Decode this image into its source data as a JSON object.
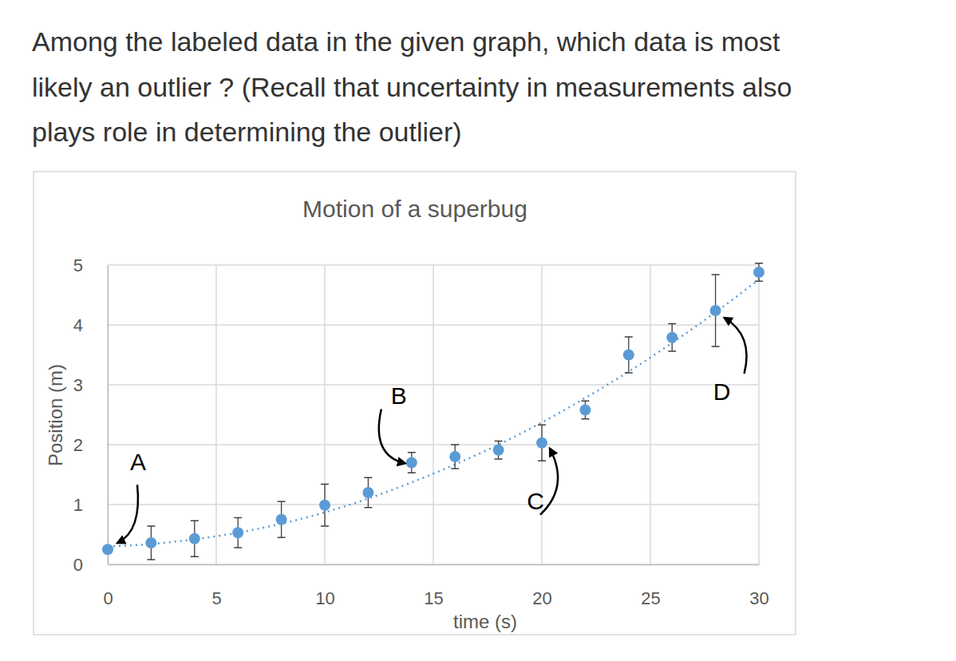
{
  "question_lines": [
    "Among the labeled data in the given graph, which data is most",
    "likely an outlier ? (Recall that uncertainty in measurements also",
    "plays role in determining the outlier)"
  ],
  "chart_data": {
    "type": "scatter",
    "title": "Motion of a superbug",
    "x_label": "time (s)",
    "y_label": "Position (m)",
    "x": [
      0,
      2,
      4,
      6,
      8,
      10,
      12,
      14,
      16,
      18,
      20,
      22,
      24,
      26,
      28,
      30
    ],
    "series": [
      {
        "type": "scatter",
        "color": "#5b9bd5",
        "marker": "circle",
        "values": [
          0.25,
          0.36,
          0.43,
          0.53,
          0.75,
          0.99,
          1.2,
          1.7,
          1.8,
          1.91,
          2.03,
          2.58,
          3.5,
          3.79,
          4.24,
          4.88
        ],
        "errors": [
          0.05,
          0.28,
          0.3,
          0.25,
          0.3,
          0.35,
          0.25,
          0.17,
          0.2,
          0.15,
          0.3,
          0.15,
          0.3,
          0.23,
          0.6,
          0.15
        ]
      },
      {
        "type": "line",
        "color": "#5b9bd5",
        "line_style": "dotted",
        "values": [
          0.3,
          0.34,
          0.42,
          0.53,
          0.68,
          0.87,
          1.1,
          1.37,
          1.67,
          2.0,
          2.37,
          2.78,
          3.22,
          3.7,
          4.21,
          4.76
        ]
      }
    ],
    "annotations": [
      {
        "text": "A",
        "x": 0
      },
      {
        "text": "B",
        "x": 14
      },
      {
        "text": "C",
        "x": 20
      },
      {
        "text": "D",
        "x": 28
      }
    ],
    "xlim": [
      0,
      30
    ],
    "xticks": [
      0,
      5,
      10,
      15,
      20,
      25,
      30
    ],
    "ylim": [
      0,
      5
    ],
    "yticks": [
      0,
      1,
      2,
      3,
      4,
      5
    ],
    "grid": true
  }
}
